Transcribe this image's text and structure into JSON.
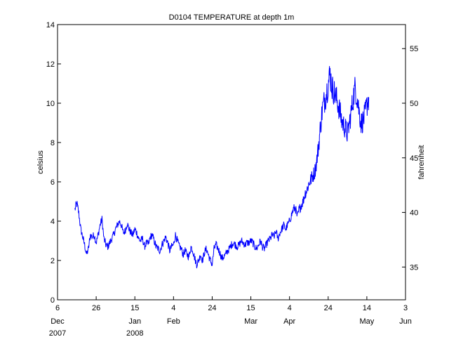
{
  "chart_data": {
    "type": "line",
    "title": "D0104 TEMPERATURE at depth 1m",
    "ylabel": "celsius",
    "ylabel_right": "fahrenheit",
    "xlabel": "",
    "color": "#0000ff",
    "grid": false,
    "xlim": [
      "2007-12-06",
      "2008-06-03"
    ],
    "ylim": [
      0,
      14
    ],
    "ylim_right": [
      32,
      57.2
    ],
    "x_ticks": [
      {
        "date": "2007-12-06",
        "label": "6",
        "month": "Dec",
        "year": "2007"
      },
      {
        "date": "2007-12-26",
        "label": "26",
        "month": "",
        "year": ""
      },
      {
        "date": "2008-01-15",
        "label": "15",
        "month": "Jan",
        "year": "2008"
      },
      {
        "date": "2008-02-04",
        "label": "4",
        "month": "Feb",
        "year": ""
      },
      {
        "date": "2008-02-24",
        "label": "24",
        "month": "",
        "year": ""
      },
      {
        "date": "2008-03-15",
        "label": "15",
        "month": "Mar",
        "year": ""
      },
      {
        "date": "2008-04-04",
        "label": "4",
        "month": "Apr",
        "year": ""
      },
      {
        "date": "2008-04-24",
        "label": "24",
        "month": "",
        "year": ""
      },
      {
        "date": "2008-05-14",
        "label": "14",
        "month": "May",
        "year": ""
      },
      {
        "date": "2008-06-03",
        "label": "3",
        "month": "Jun",
        "year": ""
      }
    ],
    "y_ticks": [
      "0",
      "2",
      "4",
      "6",
      "8",
      "10",
      "12",
      "14"
    ],
    "y_ticks_right": [
      "35",
      "40",
      "45",
      "50",
      "55"
    ],
    "series": [
      {
        "x": [
          "2007-12-15",
          "2007-12-16",
          "2007-12-17",
          "2007-12-18",
          "2007-12-19",
          "2007-12-20",
          "2007-12-21",
          "2007-12-22",
          "2007-12-23",
          "2007-12-24",
          "2007-12-25",
          "2007-12-26",
          "2007-12-27",
          "2007-12-28",
          "2007-12-29",
          "2007-12-30",
          "2007-12-31",
          "2008-01-01",
          "2008-01-02",
          "2008-01-03",
          "2008-01-04",
          "2008-01-05",
          "2008-01-06",
          "2008-01-07",
          "2008-01-08",
          "2008-01-09",
          "2008-01-10",
          "2008-01-11",
          "2008-01-12",
          "2008-01-13",
          "2008-01-14",
          "2008-01-15",
          "2008-01-16",
          "2008-01-17",
          "2008-01-18",
          "2008-01-19",
          "2008-01-20",
          "2008-01-21",
          "2008-01-22",
          "2008-01-23",
          "2008-01-24",
          "2008-01-25",
          "2008-01-26",
          "2008-01-27",
          "2008-01-28",
          "2008-01-29",
          "2008-01-30",
          "2008-01-31",
          "2008-02-01",
          "2008-02-02",
          "2008-02-03",
          "2008-02-04",
          "2008-02-05",
          "2008-02-06",
          "2008-02-07",
          "2008-02-08",
          "2008-02-09",
          "2008-02-10",
          "2008-02-11",
          "2008-02-12",
          "2008-02-13",
          "2008-02-14",
          "2008-02-15",
          "2008-02-16",
          "2008-02-17",
          "2008-02-18",
          "2008-02-19",
          "2008-02-20",
          "2008-02-21",
          "2008-02-22",
          "2008-02-23",
          "2008-02-24",
          "2008-02-25",
          "2008-02-26",
          "2008-02-27",
          "2008-02-28",
          "2008-02-29",
          "2008-03-01",
          "2008-03-02",
          "2008-03-03",
          "2008-03-04",
          "2008-03-05",
          "2008-03-06",
          "2008-03-07",
          "2008-03-08",
          "2008-03-09",
          "2008-03-10",
          "2008-03-11",
          "2008-03-12",
          "2008-03-13",
          "2008-03-14",
          "2008-03-15",
          "2008-03-16",
          "2008-03-17",
          "2008-03-18",
          "2008-03-19",
          "2008-03-20",
          "2008-03-21",
          "2008-03-22",
          "2008-03-23",
          "2008-03-24",
          "2008-03-25",
          "2008-03-26",
          "2008-03-27",
          "2008-03-28",
          "2008-03-29",
          "2008-03-30",
          "2008-03-31",
          "2008-04-01",
          "2008-04-02",
          "2008-04-03",
          "2008-04-04",
          "2008-04-05",
          "2008-04-06",
          "2008-04-07",
          "2008-04-08",
          "2008-04-09",
          "2008-04-10",
          "2008-04-11",
          "2008-04-12",
          "2008-04-13",
          "2008-04-14",
          "2008-04-15",
          "2008-04-16",
          "2008-04-17",
          "2008-04-18",
          "2008-04-19",
          "2008-04-20",
          "2008-04-21",
          "2008-04-22",
          "2008-04-23",
          "2008-04-24",
          "2008-04-25",
          "2008-04-26",
          "2008-04-27",
          "2008-04-28",
          "2008-04-29",
          "2008-04-30",
          "2008-05-01",
          "2008-05-02",
          "2008-05-03",
          "2008-05-04",
          "2008-05-05",
          "2008-05-06",
          "2008-05-07",
          "2008-05-08",
          "2008-05-09",
          "2008-05-10",
          "2008-05-11",
          "2008-05-12",
          "2008-05-13",
          "2008-05-14",
          "2008-05-15"
        ],
        "y": [
          4.6,
          4.9,
          4.4,
          3.6,
          3.2,
          2.8,
          2.3,
          2.6,
          3.3,
          3.2,
          3.3,
          2.9,
          3.3,
          3.8,
          4.1,
          3.1,
          2.8,
          2.7,
          2.9,
          3.1,
          3.3,
          3.6,
          3.8,
          4.0,
          3.8,
          3.4,
          3.5,
          3.9,
          3.6,
          3.4,
          3.3,
          3.6,
          3.4,
          3.1,
          3.0,
          3.1,
          2.7,
          2.9,
          2.8,
          3.2,
          3.3,
          3.0,
          2.7,
          2.6,
          2.5,
          2.8,
          3.0,
          3.2,
          2.9,
          2.5,
          2.7,
          2.8,
          3.3,
          3.0,
          2.7,
          2.6,
          2.3,
          2.5,
          2.3,
          2.2,
          2.7,
          2.5,
          2.1,
          1.8,
          2.0,
          2.3,
          2.0,
          2.4,
          2.6,
          2.3,
          2.0,
          1.8,
          2.6,
          2.8,
          2.6,
          2.4,
          2.1,
          2.2,
          2.3,
          2.5,
          2.6,
          2.8,
          2.9,
          2.8,
          2.7,
          2.8,
          3.0,
          2.9,
          2.8,
          2.9,
          2.9,
          3.0,
          2.9,
          2.7,
          2.6,
          2.8,
          3.0,
          2.7,
          2.6,
          2.8,
          3.0,
          3.1,
          3.3,
          3.2,
          3.5,
          3.1,
          3.4,
          3.6,
          3.8,
          3.6,
          3.8,
          4.0,
          4.3,
          4.6,
          4.7,
          4.2,
          4.6,
          4.8,
          5.0,
          5.4,
          5.6,
          5.9,
          6.1,
          6.3,
          6.5,
          7.0,
          7.8,
          8.8,
          9.7,
          10.1,
          10.5,
          11.0,
          11.5,
          10.8,
          10.6,
          10.3,
          10.0,
          9.6,
          9.1,
          8.9,
          8.7,
          8.4,
          9.0,
          9.6,
          10.3,
          10.8,
          10.3,
          9.6,
          9.0,
          9.1,
          9.4,
          9.9,
          10.3
        ]
      }
    ]
  }
}
